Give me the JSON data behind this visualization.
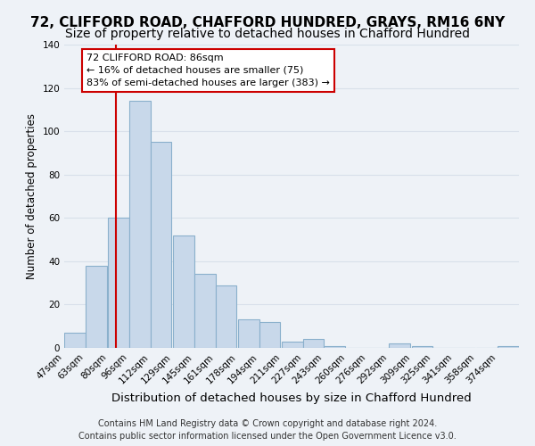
{
  "title": "72, CLIFFORD ROAD, CHAFFORD HUNDRED, GRAYS, RM16 6NY",
  "subtitle": "Size of property relative to detached houses in Chafford Hundred",
  "xlabel": "Distribution of detached houses by size in Chafford Hundred",
  "ylabel": "Number of detached properties",
  "bin_labels": [
    "47sqm",
    "63sqm",
    "80sqm",
    "96sqm",
    "112sqm",
    "129sqm",
    "145sqm",
    "161sqm",
    "178sqm",
    "194sqm",
    "211sqm",
    "227sqm",
    "243sqm",
    "260sqm",
    "276sqm",
    "292sqm",
    "309sqm",
    "325sqm",
    "341sqm",
    "358sqm",
    "374sqm"
  ],
  "bin_edges": [
    47,
    63,
    80,
    96,
    112,
    129,
    145,
    161,
    178,
    194,
    211,
    227,
    243,
    260,
    276,
    292,
    309,
    325,
    341,
    358,
    374
  ],
  "bin_width": 16,
  "bar_heights": [
    7,
    38,
    60,
    114,
    95,
    52,
    34,
    29,
    13,
    12,
    3,
    4,
    1,
    0,
    0,
    2,
    1,
    0,
    0,
    0,
    1
  ],
  "bar_color": "#c8d8ea",
  "bar_edge_color": "#8ab0cc",
  "vline_x": 86,
  "vline_color": "#cc0000",
  "ylim": [
    0,
    140
  ],
  "yticks": [
    0,
    20,
    40,
    60,
    80,
    100,
    120,
    140
  ],
  "annotation_title": "72 CLIFFORD ROAD: 86sqm",
  "annotation_line1": "← 16% of detached houses are smaller (75)",
  "annotation_line2": "83% of semi-detached houses are larger (383) →",
  "annotation_box_facecolor": "#ffffff",
  "annotation_box_edgecolor": "#cc0000",
  "footer_line1": "Contains HM Land Registry data © Crown copyright and database right 2024.",
  "footer_line2": "Contains public sector information licensed under the Open Government Licence v3.0.",
  "background_color": "#eef2f7",
  "grid_color": "#d8e0ea",
  "title_fontsize": 11,
  "subtitle_fontsize": 10,
  "xlabel_fontsize": 9.5,
  "ylabel_fontsize": 8.5,
  "tick_fontsize": 7.5,
  "annot_fontsize": 8,
  "footer_fontsize": 7
}
